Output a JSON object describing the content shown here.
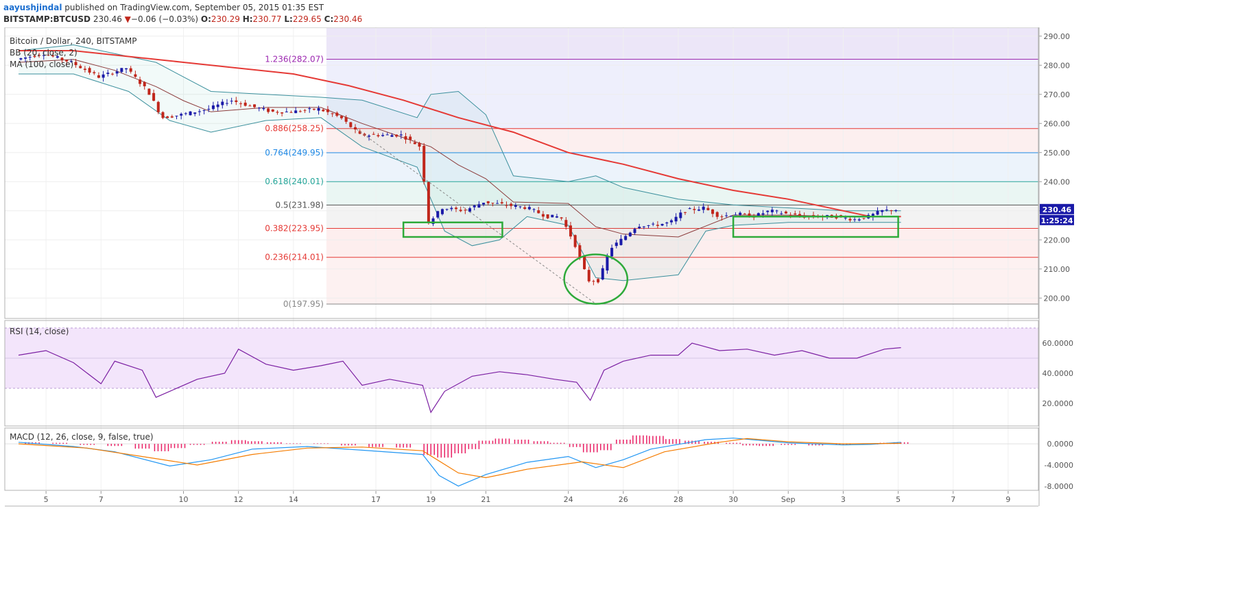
{
  "header": {
    "author": "aayushjindal",
    "published_text": "published on TradingView.com, September 05, 2015 01:35 EST",
    "symbol": "BITSTAMP:BTCUSD",
    "last": "230.46",
    "change_arrow": "▼",
    "change": "−0.06 (−0.03%)",
    "open_label": "O:",
    "open": "230.29",
    "high_label": "H:",
    "high": "230.77",
    "low_label": "L:",
    "low": "229.65",
    "close_label": "C:",
    "close": "230.46"
  },
  "chart_data": {
    "type": "candlestick",
    "title": "Bitcoin / Dollar, 240, BITSTAMP",
    "indicators": [
      "BB (20, close, 2)",
      "MA (100, close)"
    ],
    "price_axis": {
      "ylim": [
        193,
        293
      ],
      "ticks": [
        "290.00",
        "280.00",
        "270.00",
        "260.00",
        "250.00",
        "240.00",
        "230.00",
        "220.00",
        "210.00",
        "200.00"
      ]
    },
    "x_ticks": [
      {
        "label": "5",
        "day": 5
      },
      {
        "label": "7",
        "day": 7
      },
      {
        "label": "10",
        "day": 10
      },
      {
        "label": "12",
        "day": 12
      },
      {
        "label": "14",
        "day": 14
      },
      {
        "label": "17",
        "day": 17
      },
      {
        "label": "19",
        "day": 19
      },
      {
        "label": "21",
        "day": 21
      },
      {
        "label": "24",
        "day": 24
      },
      {
        "label": "26",
        "day": 26
      },
      {
        "label": "28",
        "day": 28
      },
      {
        "label": "30",
        "day": 30
      },
      {
        "label": "Sep",
        "day": 32
      },
      {
        "label": "3",
        "day": 34
      },
      {
        "label": "5",
        "day": 36
      },
      {
        "label": "7",
        "day": 38
      },
      {
        "label": "9",
        "day": 40
      }
    ],
    "fib_levels": [
      {
        "label": "1.236(282.07)",
        "value": 282.07,
        "color": "#9c27b0"
      },
      {
        "label": "0.886(258.25)",
        "value": 258.25,
        "color": "#e53935"
      },
      {
        "label": "0.764(249.95)",
        "value": 249.95,
        "color": "#1e88e5"
      },
      {
        "label": "0.618(240.01)",
        "value": 240.01,
        "color": "#26a69a"
      },
      {
        "label": "0.5(231.98)",
        "value": 231.98,
        "color": "#555555"
      },
      {
        "label": "0.382(223.95)",
        "value": 223.95,
        "color": "#e53935"
      },
      {
        "label": "0.236(214.01)",
        "value": 214.01,
        "color": "#e53935"
      },
      {
        "label": "0(197.95)",
        "value": 197.95,
        "color": "#888888"
      }
    ],
    "price_path": [
      {
        "day": 4.0,
        "price": 282
      },
      {
        "day": 5.0,
        "price": 284
      },
      {
        "day": 6.0,
        "price": 281
      },
      {
        "day": 7.0,
        "price": 276
      },
      {
        "day": 8.0,
        "price": 279
      },
      {
        "day": 8.8,
        "price": 271
      },
      {
        "day": 9.3,
        "price": 262
      },
      {
        "day": 10.0,
        "price": 263
      },
      {
        "day": 11.0,
        "price": 265
      },
      {
        "day": 11.8,
        "price": 268
      },
      {
        "day": 12.5,
        "price": 266
      },
      {
        "day": 13.3,
        "price": 264
      },
      {
        "day": 14.0,
        "price": 264
      },
      {
        "day": 15.0,
        "price": 265
      },
      {
        "day": 15.8,
        "price": 262
      },
      {
        "day": 16.5,
        "price": 256
      },
      {
        "day": 17.3,
        "price": 256
      },
      {
        "day": 18.0,
        "price": 256
      },
      {
        "day": 18.7,
        "price": 252
      },
      {
        "day": 19.0,
        "price": 226
      },
      {
        "day": 19.5,
        "price": 231
      },
      {
        "day": 20.3,
        "price": 230
      },
      {
        "day": 21.0,
        "price": 233
      },
      {
        "day": 21.8,
        "price": 232
      },
      {
        "day": 22.6,
        "price": 231
      },
      {
        "day": 23.3,
        "price": 228
      },
      {
        "day": 23.8,
        "price": 228
      },
      {
        "day": 24.3,
        "price": 219
      },
      {
        "day": 24.8,
        "price": 206
      },
      {
        "day": 25.2,
        "price": 206
      },
      {
        "day": 25.6,
        "price": 217
      },
      {
        "day": 26.0,
        "price": 220
      },
      {
        "day": 26.6,
        "price": 225
      },
      {
        "day": 27.2,
        "price": 225
      },
      {
        "day": 27.8,
        "price": 226
      },
      {
        "day": 28.3,
        "price": 230
      },
      {
        "day": 29.0,
        "price": 231
      },
      {
        "day": 29.6,
        "price": 228
      },
      {
        "day": 30.2,
        "price": 229
      },
      {
        "day": 30.8,
        "price": 228
      },
      {
        "day": 31.4,
        "price": 230
      },
      {
        "day": 32.0,
        "price": 229
      },
      {
        "day": 32.6,
        "price": 228
      },
      {
        "day": 33.2,
        "price": 228
      },
      {
        "day": 33.8,
        "price": 228
      },
      {
        "day": 34.5,
        "price": 227
      },
      {
        "day": 35.0,
        "price": 228
      },
      {
        "day": 35.5,
        "price": 230
      },
      {
        "day": 36.1,
        "price": 230.46
      }
    ],
    "ma100": [
      {
        "day": 4.0,
        "price": 285
      },
      {
        "day": 6.0,
        "price": 285
      },
      {
        "day": 8.0,
        "price": 283
      },
      {
        "day": 10.0,
        "price": 281
      },
      {
        "day": 12.0,
        "price": 279
      },
      {
        "day": 14.0,
        "price": 277
      },
      {
        "day": 16.0,
        "price": 273
      },
      {
        "day": 18.0,
        "price": 268
      },
      {
        "day": 20.0,
        "price": 262
      },
      {
        "day": 22.0,
        "price": 257
      },
      {
        "day": 24.0,
        "price": 250
      },
      {
        "day": 26.0,
        "price": 246
      },
      {
        "day": 28.0,
        "price": 241
      },
      {
        "day": 30.0,
        "price": 237
      },
      {
        "day": 32.0,
        "price": 234
      },
      {
        "day": 34.0,
        "price": 230
      },
      {
        "day": 35.0,
        "price": 228
      },
      {
        "day": 36.1,
        "price": 228
      }
    ],
    "bb_upper": [
      {
        "day": 4.0,
        "price": 285
      },
      {
        "day": 6.0,
        "price": 287
      },
      {
        "day": 7.5,
        "price": 284
      },
      {
        "day": 9.0,
        "price": 281
      },
      {
        "day": 10.0,
        "price": 276
      },
      {
        "day": 11.0,
        "price": 271
      },
      {
        "day": 13.0,
        "price": 270
      },
      {
        "day": 15.0,
        "price": 269
      },
      {
        "day": 16.5,
        "price": 268
      },
      {
        "day": 18.5,
        "price": 262
      },
      {
        "day": 19.0,
        "price": 270
      },
      {
        "day": 20.0,
        "price": 271
      },
      {
        "day": 21.0,
        "price": 263
      },
      {
        "day": 22.0,
        "price": 242
      },
      {
        "day": 24.0,
        "price": 240
      },
      {
        "day": 25.0,
        "price": 242
      },
      {
        "day": 26.0,
        "price": 238
      },
      {
        "day": 28.0,
        "price": 234
      },
      {
        "day": 30.0,
        "price": 232
      },
      {
        "day": 32.0,
        "price": 231
      },
      {
        "day": 34.0,
        "price": 230
      },
      {
        "day": 36.1,
        "price": 230
      }
    ],
    "bb_lower": [
      {
        "day": 4.0,
        "price": 277
      },
      {
        "day": 6.0,
        "price": 277
      },
      {
        "day": 8.0,
        "price": 271
      },
      {
        "day": 9.5,
        "price": 261
      },
      {
        "day": 11.0,
        "price": 257
      },
      {
        "day": 13.0,
        "price": 261
      },
      {
        "day": 15.0,
        "price": 262
      },
      {
        "day": 16.5,
        "price": 252
      },
      {
        "day": 18.5,
        "price": 245
      },
      {
        "day": 19.5,
        "price": 223
      },
      {
        "day": 20.5,
        "price": 218
      },
      {
        "day": 21.5,
        "price": 220
      },
      {
        "day": 22.5,
        "price": 228
      },
      {
        "day": 24.0,
        "price": 225
      },
      {
        "day": 25.0,
        "price": 207
      },
      {
        "day": 26.0,
        "price": 206
      },
      {
        "day": 28.0,
        "price": 208
      },
      {
        "day": 29.0,
        "price": 223
      },
      {
        "day": 30.0,
        "price": 225
      },
      {
        "day": 32.0,
        "price": 226
      },
      {
        "day": 34.0,
        "price": 226
      },
      {
        "day": 36.1,
        "price": 226
      }
    ],
    "price_tag": "230.46",
    "countdown_tag": "1:25:24",
    "annotations": [
      {
        "type": "rectangle",
        "day_from": 18.0,
        "day_to": 21.6,
        "price_from": 221,
        "price_to": 226
      },
      {
        "type": "ellipse",
        "day_center": 25.0,
        "day_radius": 1.15,
        "price_center": 206.5,
        "price_radius": 8.5
      },
      {
        "type": "rectangle",
        "day_from": 30.0,
        "day_to": 36.0,
        "price_from": 221,
        "price_to": 228
      },
      {
        "type": "trend_line",
        "day_from": 16.3,
        "day_to": 25.0,
        "price_from": 258,
        "price_to": 198
      }
    ],
    "rsi": {
      "label": "RSI (14, close)",
      "ylim": [
        5,
        75
      ],
      "ticks": [
        "60.0000",
        "40.0000",
        "20.0000"
      ],
      "band": [
        30,
        70
      ],
      "values": [
        {
          "day": 4.0,
          "value": 52
        },
        {
          "day": 5.0,
          "value": 55
        },
        {
          "day": 6.0,
          "value": 47
        },
        {
          "day": 7.0,
          "value": 33
        },
        {
          "day": 7.5,
          "value": 48
        },
        {
          "day": 8.5,
          "value": 42
        },
        {
          "day": 9.0,
          "value": 24
        },
        {
          "day": 9.5,
          "value": 28
        },
        {
          "day": 10.5,
          "value": 36
        },
        {
          "day": 11.5,
          "value": 40
        },
        {
          "day": 12.0,
          "value": 56
        },
        {
          "day": 13.0,
          "value": 46
        },
        {
          "day": 14.0,
          "value": 42
        },
        {
          "day": 15.0,
          "value": 45
        },
        {
          "day": 15.8,
          "value": 48
        },
        {
          "day": 16.5,
          "value": 32
        },
        {
          "day": 17.5,
          "value": 36
        },
        {
          "day": 18.7,
          "value": 32
        },
        {
          "day": 19.0,
          "value": 14
        },
        {
          "day": 19.5,
          "value": 28
        },
        {
          "day": 20.5,
          "value": 38
        },
        {
          "day": 21.5,
          "value": 41
        },
        {
          "day": 22.5,
          "value": 39
        },
        {
          "day": 23.5,
          "value": 36
        },
        {
          "day": 24.3,
          "value": 34
        },
        {
          "day": 24.8,
          "value": 22
        },
        {
          "day": 25.3,
          "value": 42
        },
        {
          "day": 26.0,
          "value": 48
        },
        {
          "day": 27.0,
          "value": 52
        },
        {
          "day": 28.0,
          "value": 52
        },
        {
          "day": 28.5,
          "value": 60
        },
        {
          "day": 29.5,
          "value": 55
        },
        {
          "day": 30.5,
          "value": 56
        },
        {
          "day": 31.5,
          "value": 52
        },
        {
          "day": 32.5,
          "value": 55
        },
        {
          "day": 33.5,
          "value": 50
        },
        {
          "day": 34.5,
          "value": 50
        },
        {
          "day": 35.5,
          "value": 56
        },
        {
          "day": 36.1,
          "value": 57
        }
      ]
    },
    "macd": {
      "label": "MACD (12, 26, close, 9, false, true)",
      "ylim": [
        -8.8,
        3.0
      ],
      "ticks": [
        {
          "label": "0.0000",
          "value": 0
        },
        {
          "label": "-4.0000",
          "value": -4
        },
        {
          "label": "-8.0000",
          "value": -8
        }
      ],
      "macd_line": [
        {
          "day": 4.0,
          "value": 0.3
        },
        {
          "day": 6.0,
          "value": -0.5
        },
        {
          "day": 7.5,
          "value": -1.5
        },
        {
          "day": 9.5,
          "value": -4.2
        },
        {
          "day": 11.0,
          "value": -3.0
        },
        {
          "day": 12.5,
          "value": -1.0
        },
        {
          "day": 14.5,
          "value": -0.5
        },
        {
          "day": 16.5,
          "value": -1.2
        },
        {
          "day": 18.7,
          "value": -2.0
        },
        {
          "day": 19.3,
          "value": -6.0
        },
        {
          "day": 20.0,
          "value": -8.0
        },
        {
          "day": 21.0,
          "value": -5.8
        },
        {
          "day": 22.5,
          "value": -3.5
        },
        {
          "day": 24.0,
          "value": -2.4
        },
        {
          "day": 25.0,
          "value": -4.5
        },
        {
          "day": 26.0,
          "value": -3.0
        },
        {
          "day": 27.0,
          "value": -1.0
        },
        {
          "day": 29.0,
          "value": 0.8
        },
        {
          "day": 30.0,
          "value": 1.1
        },
        {
          "day": 32.0,
          "value": 0.2
        },
        {
          "day": 34.0,
          "value": -0.2
        },
        {
          "day": 35.0,
          "value": -0.1
        },
        {
          "day": 36.1,
          "value": 0.3
        }
      ],
      "signal_line": [
        {
          "day": 4.0,
          "value": 0.0
        },
        {
          "day": 6.5,
          "value": -0.8
        },
        {
          "day": 8.5,
          "value": -2.4
        },
        {
          "day": 10.5,
          "value": -4.0
        },
        {
          "day": 12.5,
          "value": -2.0
        },
        {
          "day": 14.5,
          "value": -0.8
        },
        {
          "day": 16.5,
          "value": -0.6
        },
        {
          "day": 18.7,
          "value": -1.3
        },
        {
          "day": 20.0,
          "value": -5.5
        },
        {
          "day": 21.0,
          "value": -6.4
        },
        {
          "day": 22.5,
          "value": -4.8
        },
        {
          "day": 24.5,
          "value": -3.4
        },
        {
          "day": 26.0,
          "value": -4.5
        },
        {
          "day": 27.5,
          "value": -1.5
        },
        {
          "day": 29.5,
          "value": 0.3
        },
        {
          "day": 30.5,
          "value": 1.0
        },
        {
          "day": 32.0,
          "value": 0.4
        },
        {
          "day": 34.0,
          "value": 0.0
        },
        {
          "day": 36.1,
          "value": 0.1
        }
      ],
      "histogram": [
        {
          "day": 4.5,
          "value": 0.3
        },
        {
          "day": 5.5,
          "value": 0.2
        },
        {
          "day": 6.5,
          "value": -0.2
        },
        {
          "day": 7.5,
          "value": -0.4
        },
        {
          "day": 8.5,
          "value": -0.9
        },
        {
          "day": 9.2,
          "value": -1.4
        },
        {
          "day": 9.8,
          "value": -0.8
        },
        {
          "day": 10.5,
          "value": -0.2
        },
        {
          "day": 11.3,
          "value": 0.4
        },
        {
          "day": 12.0,
          "value": 0.7
        },
        {
          "day": 12.6,
          "value": 0.5
        },
        {
          "day": 13.3,
          "value": 0.3
        },
        {
          "day": 14.0,
          "value": 0.1
        },
        {
          "day": 15.0,
          "value": 0.1
        },
        {
          "day": 16.0,
          "value": -0.3
        },
        {
          "day": 17.0,
          "value": -0.6
        },
        {
          "day": 18.0,
          "value": -0.7
        },
        {
          "day": 19.0,
          "value": -2.1
        },
        {
          "day": 19.5,
          "value": -2.6
        },
        {
          "day": 20.0,
          "value": -1.8
        },
        {
          "day": 20.5,
          "value": -1.0
        },
        {
          "day": 21.0,
          "value": 0.6
        },
        {
          "day": 21.6,
          "value": 1.0
        },
        {
          "day": 22.3,
          "value": 0.8
        },
        {
          "day": 23.0,
          "value": 0.5
        },
        {
          "day": 23.6,
          "value": 0.2
        },
        {
          "day": 24.3,
          "value": -0.6
        },
        {
          "day": 24.8,
          "value": -1.6
        },
        {
          "day": 25.3,
          "value": -1.2
        },
        {
          "day": 26.0,
          "value": 0.8
        },
        {
          "day": 26.6,
          "value": 1.6
        },
        {
          "day": 27.2,
          "value": 1.5
        },
        {
          "day": 27.8,
          "value": 0.9
        },
        {
          "day": 28.5,
          "value": 0.6
        },
        {
          "day": 29.2,
          "value": 0.4
        },
        {
          "day": 30.0,
          "value": 0.2
        },
        {
          "day": 30.6,
          "value": -0.3
        },
        {
          "day": 31.2,
          "value": -0.4
        },
        {
          "day": 32.0,
          "value": -0.2
        },
        {
          "day": 33.0,
          "value": -0.3
        },
        {
          "day": 34.0,
          "value": -0.2
        },
        {
          "day": 35.0,
          "value": -0.1
        },
        {
          "day": 35.6,
          "value": 0.2
        },
        {
          "day": 36.1,
          "value": 0.3
        }
      ]
    }
  }
}
